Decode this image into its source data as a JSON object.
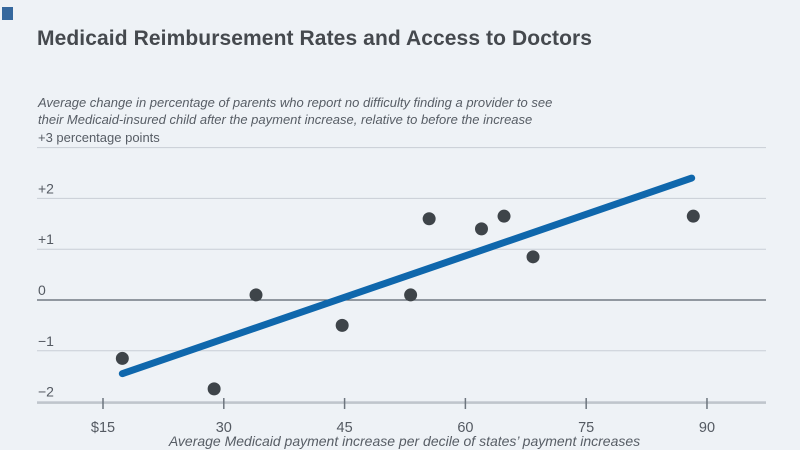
{
  "logo": {
    "name": "publisher-logo-square",
    "color": "#35689e"
  },
  "header": {
    "title": "Medicaid Reimbursement Rates and Access to Doctors",
    "subtitle_line1": "Average change in percentage of parents who report no difficulty finding a provider to see",
    "subtitle_line2": "their Medicaid-insured child after the payment increase, relative to before the increase",
    "y_axis_unit": "+3 percentage points"
  },
  "chart_data": {
    "type": "scatter",
    "title": "Medicaid Reimbursement Rates and Access to Doctors",
    "subtitle": "Average change in percentage of parents who report no difficulty finding a provider to see their Medicaid-insured child after the payment increase, relative to before the increase",
    "xlabel": "Average Medicaid payment increase per decile of states’ payment increases",
    "ylabel": "percentage points",
    "xlim": [
      6.8,
      97.3
    ],
    "ylim": [
      -2,
      3
    ],
    "grid": true,
    "x_ticks": [
      {
        "value": 15,
        "label": "$15"
      },
      {
        "value": 30,
        "label": "30"
      },
      {
        "value": 45,
        "label": "45"
      },
      {
        "value": 60,
        "label": "60"
      },
      {
        "value": 75,
        "label": "75"
      },
      {
        "value": 90,
        "label": "90"
      }
    ],
    "y_ticks": [
      {
        "value": 3,
        "label": "+3 percentage points"
      },
      {
        "value": 2,
        "label": "+2"
      },
      {
        "value": 1,
        "label": "+1"
      },
      {
        "value": 0,
        "label": "0"
      },
      {
        "value": -1,
        "label": "−1"
      },
      {
        "value": -2,
        "label": "−2"
      }
    ],
    "points": [
      {
        "x": 17.4,
        "y": -1.15
      },
      {
        "x": 28.8,
        "y": -1.75
      },
      {
        "x": 34.0,
        "y": 0.1
      },
      {
        "x": 44.7,
        "y": -0.5
      },
      {
        "x": 53.2,
        "y": 0.1
      },
      {
        "x": 55.5,
        "y": 1.6
      },
      {
        "x": 62.0,
        "y": 1.4
      },
      {
        "x": 64.8,
        "y": 1.65
      },
      {
        "x": 68.4,
        "y": 0.85
      },
      {
        "x": 88.3,
        "y": 1.65
      }
    ],
    "trend_line": {
      "x1": 17.4,
      "y1": -1.45,
      "x2": 88.1,
      "y2": 2.4
    },
    "colors": {
      "background": "#eef2f6",
      "trend_line": "#0f67ac",
      "points": "#3e4449",
      "gridline": "#c8ced5",
      "zero_line": "#5a636d",
      "axis_line": "#9aa1a9",
      "tick": "#6d757e",
      "title_text": "#45494e",
      "label_text": "#575d65",
      "tick_text": "#545a62"
    }
  }
}
